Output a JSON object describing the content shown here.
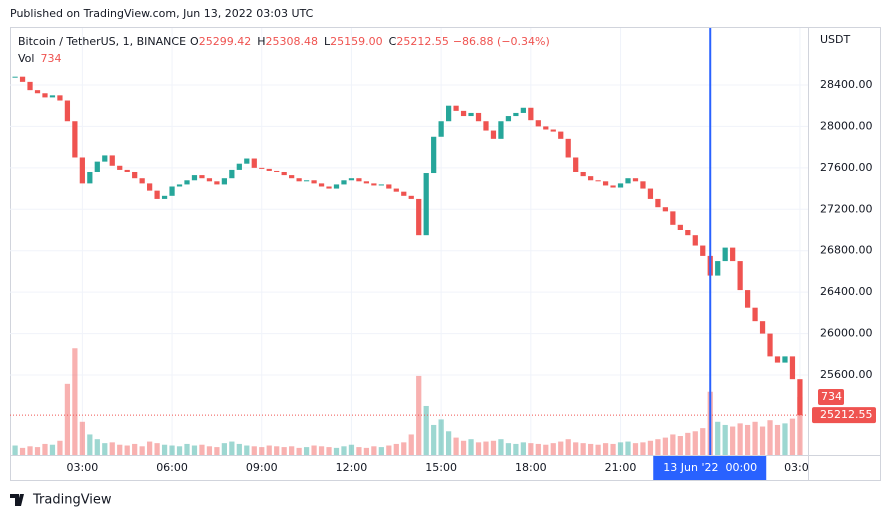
{
  "header": {
    "published": "Published on TradingView.com, Jun 13, 2022 03:03 UTC"
  },
  "chart_data": {
    "type": "candlestick",
    "symbol": "Bitcoin / TetherUS, 1, BINANCE",
    "ohlc": [
      {
        "label": "O",
        "value": "25299.42"
      },
      {
        "label": "H",
        "value": "25308.48"
      },
      {
        "label": "L",
        "value": "25159.00"
      },
      {
        "label": "C",
        "value": "25212.55"
      }
    ],
    "change": "−86.88 (−0.34%)",
    "volume_label": "Vol",
    "volume_last": "734",
    "currency": "USDT",
    "last_price_label": "25212.55",
    "up_color": "#26a69a",
    "down_color": "#ef5350",
    "x": [
      0.75,
      1,
      1.25,
      1.5,
      1.75,
      2,
      2.25,
      2.5,
      2.75,
      3,
      3.25,
      3.5,
      3.75,
      4,
      4.25,
      4.5,
      4.75,
      5,
      5.25,
      5.5,
      5.75,
      6,
      6.25,
      6.5,
      6.75,
      7,
      7.25,
      7.5,
      7.75,
      8,
      8.25,
      8.5,
      8.75,
      9,
      9.25,
      9.5,
      9.75,
      10,
      10.25,
      10.5,
      10.75,
      11,
      11.25,
      11.5,
      11.75,
      12,
      12.25,
      12.5,
      12.75,
      13,
      13.25,
      13.5,
      13.75,
      14,
      14.25,
      14.5,
      14.75,
      15,
      15.25,
      15.5,
      15.75,
      16,
      16.25,
      16.5,
      16.75,
      17,
      17.25,
      17.5,
      17.75,
      18,
      18.25,
      18.5,
      18.75,
      19,
      19.25,
      19.5,
      19.75,
      20,
      20.25,
      20.5,
      20.75,
      21,
      21.25,
      21.5,
      21.75,
      22,
      22.25,
      22.5,
      22.75,
      23,
      23.25,
      23.5,
      23.75,
      24,
      24.25,
      24.5,
      24.75,
      25,
      25.25,
      25.5,
      25.75,
      26,
      26.25,
      26.5,
      26.75,
      27
    ],
    "close": [
      28480,
      28430,
      28350,
      28320,
      28280,
      28300,
      28250,
      28050,
      27700,
      27450,
      27560,
      27660,
      27720,
      27620,
      27580,
      27560,
      27500,
      27450,
      27380,
      27300,
      27330,
      27420,
      27440,
      27480,
      27530,
      27500,
      27470,
      27440,
      27500,
      27580,
      27640,
      27690,
      27600,
      27590,
      27570,
      27560,
      27530,
      27500,
      27470,
      27480,
      27450,
      27420,
      27400,
      27440,
      27480,
      27500,
      27470,
      27450,
      27430,
      27440,
      27400,
      27370,
      27330,
      27300,
      26950,
      27550,
      27900,
      28050,
      28200,
      28150,
      28100,
      28130,
      28050,
      27960,
      27880,
      28050,
      28100,
      28130,
      28180,
      28060,
      28000,
      27970,
      27950,
      27880,
      27700,
      27560,
      27520,
      27480,
      27470,
      27430,
      27410,
      27450,
      27500,
      27470,
      27400,
      27300,
      27220,
      27180,
      27050,
      27000,
      26950,
      26850,
      26750,
      26560,
      26700,
      26830,
      26700,
      26420,
      26250,
      26120,
      26000,
      25780,
      25720,
      25780,
      25560,
      25212.55
    ],
    "volume": [
      120,
      90,
      110,
      100,
      140,
      130,
      180,
      900,
      1350,
      420,
      260,
      200,
      150,
      160,
      130,
      120,
      140,
      110,
      170,
      150,
      130,
      120,
      110,
      140,
      120,
      130,
      110,
      100,
      150,
      170,
      140,
      120,
      110,
      100,
      120,
      110,
      100,
      110,
      90,
      100,
      120,
      110,
      100,
      90,
      110,
      130,
      100,
      90,
      110,
      100,
      120,
      140,
      160,
      260,
      1000,
      620,
      380,
      450,
      300,
      220,
      180,
      200,
      160,
      170,
      180,
      200,
      150,
      140,
      160,
      150,
      140,
      130,
      150,
      170,
      200,
      160,
      150,
      140,
      130,
      150,
      140,
      160,
      170,
      150,
      160,
      180,
      200,
      220,
      260,
      240,
      280,
      300,
      340,
      800,
      420,
      380,
      360,
      400,
      380,
      420,
      360,
      440,
      380,
      400,
      460,
      734
    ],
    "xlim": [
      0.58,
      27.27
    ],
    "ylim": [
      24828,
      28950
    ],
    "volume_ylim": [
      0,
      5400
    ],
    "xticks": [
      {
        "value": 3,
        "label": "03:00"
      },
      {
        "value": 6,
        "label": "06:00"
      },
      {
        "value": 9,
        "label": "09:00"
      },
      {
        "value": 12,
        "label": "12:00"
      },
      {
        "value": 15,
        "label": "15:00"
      },
      {
        "value": 18,
        "label": "18:00"
      },
      {
        "value": 21,
        "label": "21:00"
      },
      {
        "value": 27,
        "label": "03:00"
      }
    ],
    "yticks": [
      {
        "value": 25600,
        "label": "25600.00"
      },
      {
        "value": 26000,
        "label": "26000.00"
      },
      {
        "value": 26400,
        "label": "26400.00"
      },
      {
        "value": 26800,
        "label": "26800.00"
      },
      {
        "value": 27200,
        "label": "27200.00"
      },
      {
        "value": 27600,
        "label": "27600.00"
      },
      {
        "value": 28000,
        "label": "28000.00"
      },
      {
        "value": 28400,
        "label": "28400.00"
      }
    ],
    "grid": true,
    "crosshair": {
      "x": 24,
      "label": "13 Jun '22  00:00",
      "color": "#2962ff"
    }
  },
  "footer": {
    "brand": "TradingView"
  }
}
